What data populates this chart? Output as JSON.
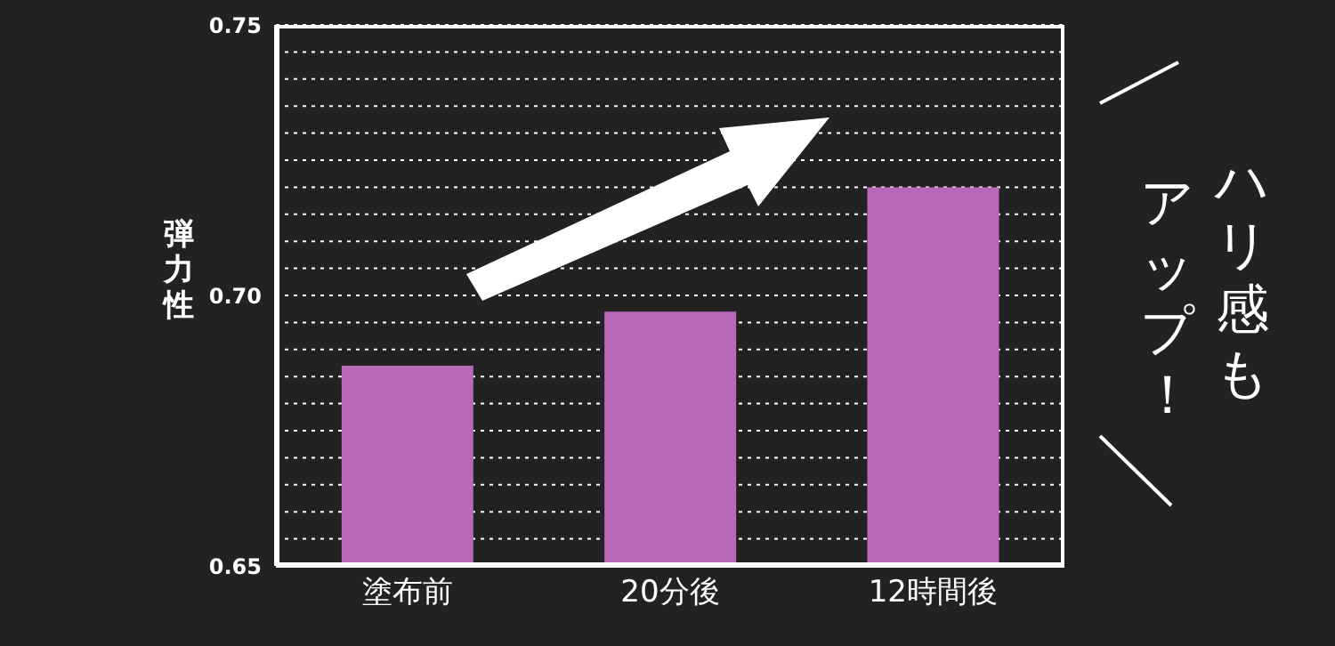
{
  "chart_data": {
    "type": "bar",
    "categories": [
      "塗布前",
      "20分後",
      "12時間後"
    ],
    "series": [
      {
        "color": "#b868b8",
        "values": [
          0.687,
          0.697,
          0.72
        ]
      }
    ],
    "ylabel": "弾力性",
    "ylim": [
      0.65,
      0.75
    ],
    "yticks": [
      0.65,
      {
        "value": 0.655,
        "label": null
      },
      {
        "value": 0.66,
        "label": null
      },
      {
        "value": 0.665,
        "label": null
      },
      {
        "value": 0.67,
        "label": null
      },
      {
        "value": 0.675,
        "label": null
      },
      {
        "value": 0.68,
        "label": null
      },
      {
        "value": 0.685,
        "label": null
      },
      {
        "value": 0.69,
        "label": null
      },
      {
        "value": 0.695,
        "label": null
      },
      {
        "value": 0.7,
        "label": "0.70"
      },
      {
        "value": 0.705,
        "label": null
      },
      {
        "value": 0.71,
        "label": null
      },
      {
        "value": 0.715,
        "label": null
      },
      {
        "value": 0.72,
        "label": null
      },
      {
        "value": 0.725,
        "label": null
      },
      {
        "value": 0.73,
        "label": null
      },
      {
        "value": 0.735,
        "label": null
      },
      {
        "value": 0.74,
        "label": null
      },
      {
        "value": 0.745,
        "label": null
      },
      0.75
    ],
    "grid": "y",
    "annotations": [
      "ハリ感も",
      "アップ！"
    ]
  }
}
